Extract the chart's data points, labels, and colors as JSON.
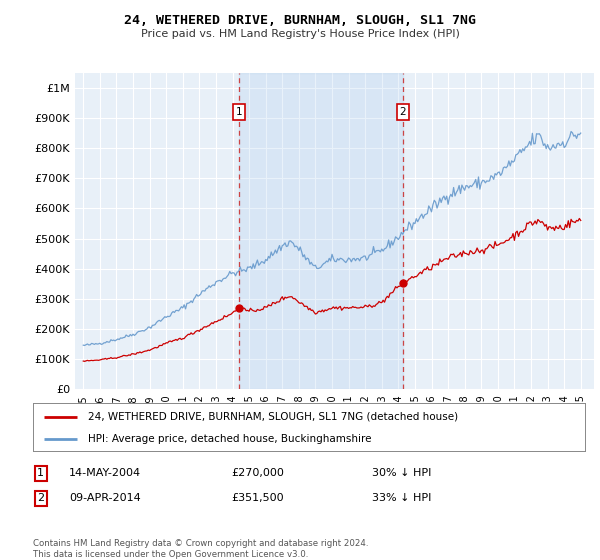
{
  "title": "24, WETHERED DRIVE, BURNHAM, SLOUGH, SL1 7NG",
  "subtitle": "Price paid vs. HM Land Registry's House Price Index (HPI)",
  "background_color": "#ffffff",
  "plot_bg_color": "#dce6f0",
  "plot_bg_color2": "#e8f0f8",
  "grid_color": "#ffffff",
  "red_line_color": "#cc0000",
  "blue_line_color": "#6699cc",
  "sale1_date": "14-MAY-2004",
  "sale1_price": 270000,
  "sale1_pct": "30% ↓ HPI",
  "sale1_year": 2004.37,
  "sale2_date": "09-APR-2014",
  "sale2_price": 351500,
  "sale2_pct": "33% ↓ HPI",
  "sale2_year": 2014.27,
  "legend_label_red": "24, WETHERED DRIVE, BURNHAM, SLOUGH, SL1 7NG (detached house)",
  "legend_label_blue": "HPI: Average price, detached house, Buckinghamshire",
  "footer": "Contains HM Land Registry data © Crown copyright and database right 2024.\nThis data is licensed under the Open Government Licence v3.0.",
  "xlim": [
    1994.5,
    2025.8
  ],
  "ylim": [
    0,
    1050000
  ],
  "yticks": [
    0,
    100000,
    200000,
    300000,
    400000,
    500000,
    600000,
    700000,
    800000,
    900000,
    1000000
  ],
  "ytick_labels": [
    "£0",
    "£100K",
    "£200K",
    "£300K",
    "£400K",
    "£500K",
    "£600K",
    "£700K",
    "£800K",
    "£900K",
    "£1M"
  ],
  "xticks": [
    1995,
    1996,
    1997,
    1998,
    1999,
    2000,
    2001,
    2002,
    2003,
    2004,
    2005,
    2006,
    2007,
    2008,
    2009,
    2010,
    2011,
    2012,
    2013,
    2014,
    2015,
    2016,
    2017,
    2018,
    2019,
    2020,
    2021,
    2022,
    2023,
    2024,
    2025
  ]
}
